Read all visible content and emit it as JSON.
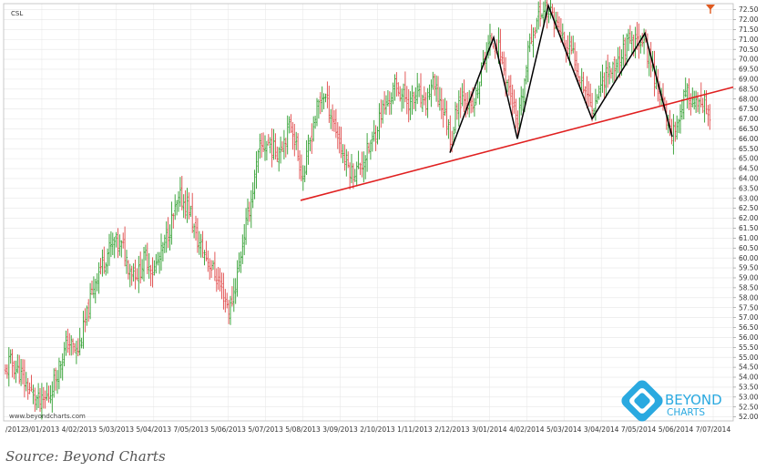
{
  "ticker": "CSL",
  "watermark": "www.beyondcharts.com",
  "brand": {
    "line1": "BEYOND",
    "line2": "CHARTS",
    "color": "#2aa9e0"
  },
  "source": "Source: Beyond Charts",
  "colors": {
    "up": "#2e9e2e",
    "down": "#e04848",
    "trendline": "#e02020",
    "pattern": "#000000",
    "grid": "#e6e6e6",
    "marker": "#e05a20"
  },
  "chart_data": {
    "type": "bar",
    "ylim": [
      51.8,
      72.8
    ],
    "y_ticks": [
      "52.00",
      "52.50",
      "53.00",
      "53.50",
      "54.00",
      "54.50",
      "55.00",
      "55.50",
      "56.00",
      "56.50",
      "57.00",
      "57.50",
      "58.00",
      "58.50",
      "59.00",
      "59.50",
      "60.00",
      "60.50",
      "61.00",
      "61.50",
      "62.00",
      "62.50",
      "63.00",
      "63.50",
      "64.00",
      "64.50",
      "65.00",
      "65.50",
      "66.00",
      "66.50",
      "67.00",
      "67.50",
      "68.00",
      "68.50",
      "69.00",
      "69.50",
      "70.00",
      "70.50",
      "71.00",
      "71.50",
      "72.00",
      "72.50"
    ],
    "x_ticks": [
      "/2012",
      "3/01/2013",
      "4/02/2013",
      "5/03/2013",
      "5/04/2013",
      "7/05/2013",
      "5/06/2013",
      "5/07/2013",
      "5/08/2013",
      "3/09/2013",
      "2/10/2013",
      "1/11/2013",
      "2/12/2013",
      "3/01/2014",
      "4/02/2014",
      "5/03/2014",
      "3/04/2014",
      "7/05/2014",
      "5/06/2014",
      "7/07/2014"
    ],
    "path": [
      [
        0,
        53.2
      ],
      [
        10,
        54.8
      ],
      [
        20,
        54.3
      ],
      [
        30,
        53.5
      ],
      [
        45,
        52.6
      ],
      [
        55,
        53.2
      ],
      [
        65,
        54.6
      ],
      [
        75,
        55.8
      ],
      [
        85,
        55.2
      ],
      [
        95,
        57.0
      ],
      [
        105,
        59.0
      ],
      [
        115,
        60.0
      ],
      [
        125,
        60.8
      ],
      [
        135,
        60.5
      ],
      [
        142,
        59.5
      ],
      [
        152,
        59.2
      ],
      [
        160,
        60.1
      ],
      [
        168,
        59.3
      ],
      [
        178,
        60.3
      ],
      [
        188,
        61.8
      ],
      [
        198,
        63.0
      ],
      [
        208,
        62.5
      ],
      [
        215,
        61.0
      ],
      [
        225,
        60.2
      ],
      [
        235,
        59.3
      ],
      [
        245,
        58.2
      ],
      [
        252,
        57.3
      ],
      [
        260,
        59.0
      ],
      [
        268,
        61.2
      ],
      [
        276,
        63.0
      ],
      [
        285,
        65.5
      ],
      [
        295,
        65.8
      ],
      [
        303,
        65.3
      ],
      [
        312,
        66.0
      ],
      [
        320,
        66.8
      ],
      [
        327,
        65.2
      ],
      [
        333,
        64.0
      ],
      [
        340,
        65.8
      ],
      [
        348,
        67.5
      ],
      [
        355,
        68.3
      ],
      [
        362,
        67.5
      ],
      [
        370,
        66.3
      ],
      [
        378,
        65.0
      ],
      [
        386,
        64.3
      ],
      [
        394,
        64.5
      ],
      [
        402,
        65.2
      ],
      [
        410,
        66.0
      ],
      [
        418,
        67.3
      ],
      [
        426,
        67.8
      ],
      [
        434,
        68.7
      ],
      [
        442,
        68.2
      ],
      [
        450,
        67.8
      ],
      [
        458,
        68.3
      ],
      [
        466,
        67.5
      ],
      [
        474,
        68.8
      ],
      [
        482,
        68.0
      ],
      [
        490,
        67.0
      ],
      [
        496,
        65.8
      ],
      [
        502,
        67.8
      ],
      [
        510,
        68.3
      ],
      [
        518,
        67.3
      ],
      [
        525,
        68.5
      ],
      [
        532,
        70.2
      ],
      [
        540,
        71.0
      ],
      [
        548,
        70.5
      ],
      [
        556,
        69.0
      ],
      [
        562,
        68.0
      ],
      [
        568,
        66.5
      ],
      [
        575,
        68.5
      ],
      [
        582,
        71.0
      ],
      [
        590,
        72.0
      ],
      [
        598,
        72.6
      ],
      [
        606,
        72.2
      ],
      [
        614,
        71.5
      ],
      [
        622,
        70.5
      ],
      [
        630,
        70.2
      ],
      [
        638,
        69.0
      ],
      [
        645,
        68.3
      ],
      [
        650,
        67.5
      ],
      [
        656,
        68.3
      ],
      [
        664,
        69.2
      ],
      [
        672,
        69.5
      ],
      [
        680,
        70.0
      ],
      [
        688,
        70.8
      ],
      [
        696,
        70.6
      ],
      [
        704,
        71.2
      ],
      [
        712,
        70.2
      ],
      [
        720,
        69.0
      ],
      [
        727,
        67.8
      ],
      [
        733,
        66.8
      ],
      [
        738,
        66.3
      ],
      [
        744,
        66.8
      ],
      [
        750,
        68.0
      ],
      [
        756,
        68.2
      ],
      [
        762,
        67.8
      ],
      [
        768,
        67.5
      ],
      [
        775,
        67.5
      ],
      [
        780,
        67.0
      ]
    ],
    "trendline": [
      [
        330,
        62.9
      ],
      [
        805,
        68.6
      ]
    ],
    "pattern_lines": [
      [
        494,
        65.3
      ],
      [
        542,
        71.1
      ],
      [
        568,
        66.0
      ],
      [
        602,
        72.7
      ],
      [
        650,
        67.0
      ],
      [
        708,
        71.3
      ],
      [
        738,
        66.1
      ]
    ]
  }
}
